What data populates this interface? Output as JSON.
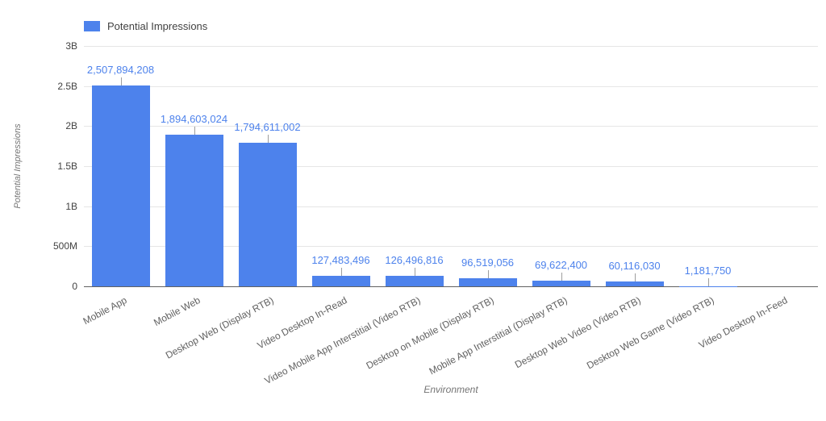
{
  "chart_data": {
    "type": "bar",
    "title": "",
    "legend_label": "Potential Impressions",
    "legend_position": "top-left",
    "xlabel": "Environment",
    "ylabel": "Potential Impressions",
    "ylim": [
      0,
      3000000000
    ],
    "grid": true,
    "yticks": [
      {
        "value": 0,
        "label": "0"
      },
      {
        "value": 500000000,
        "label": "500M"
      },
      {
        "value": 1000000000,
        "label": "1B"
      },
      {
        "value": 1500000000,
        "label": "1.5B"
      },
      {
        "value": 2000000000,
        "label": "2B"
      },
      {
        "value": 2500000000,
        "label": "2.5B"
      },
      {
        "value": 3000000000,
        "label": "3B"
      }
    ],
    "categories": [
      "Mobile App",
      "Mobile Web",
      "Desktop Web (Display RTB)",
      "Video Desktop In-Read",
      "Video Mobile App Interstitial (Video RTB)",
      "Desktop on Mobile (Display RTB)",
      "Mobile App Interstitial (Display RTB)",
      "Desktop Web Video (Video RTB)",
      "Desktop Web Game (Video RTB)",
      "Video Desktop In-Feed"
    ],
    "series": [
      {
        "name": "Potential Impressions",
        "values": [
          2507894208,
          1894603024,
          1794611002,
          127483496,
          126496816,
          96519056,
          69622400,
          60116030,
          1181750,
          0
        ],
        "value_labels": [
          "2,507,894,208",
          "1,894,603,024",
          "1,794,611,002",
          "127,483,496",
          "126,496,816",
          "96,519,056",
          "69,622,400",
          "60,116,030",
          "1,181,750",
          ""
        ]
      }
    ]
  },
  "colors": {
    "bar": "#4d82ec",
    "value_label": "#4d82ec",
    "gridline": "#e6e6e6",
    "axis_line": "#616161",
    "tick_text": "#424242",
    "category_text": "#616161",
    "axis_title_text": "#757575",
    "legend_text": "#424242",
    "connector": "#9e9e9e",
    "background": "#ffffff"
  }
}
